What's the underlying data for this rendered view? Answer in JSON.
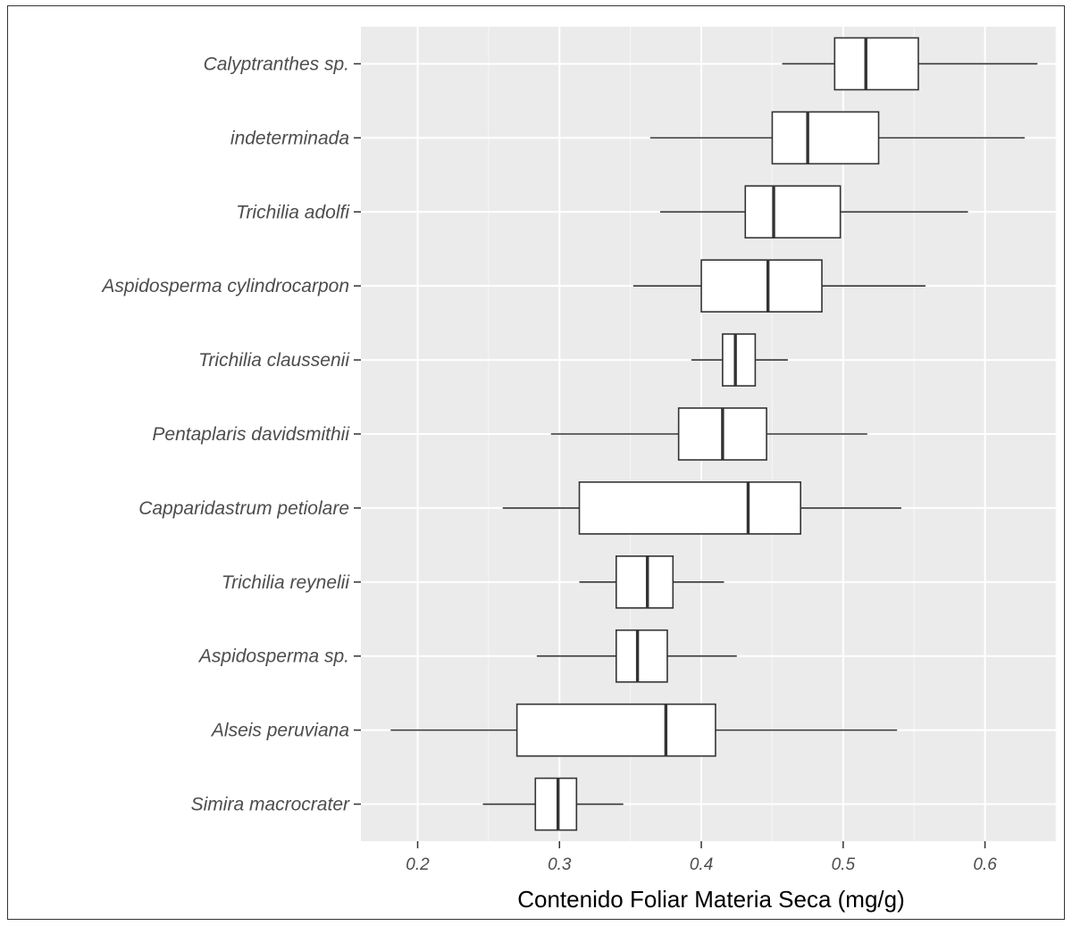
{
  "chart_data": {
    "type": "boxplot",
    "orientation": "horizontal",
    "xlabel": "Contenido Foliar Materia Seca (mg/g)",
    "ylabel": "",
    "xlim": [
      0.16,
      0.65
    ],
    "x_ticks": [
      0.2,
      0.3,
      0.4,
      0.5,
      0.6
    ],
    "x_tick_labels": [
      "0.2",
      "0.3",
      "0.4",
      "0.5",
      "0.6"
    ],
    "grid": true,
    "colors": {
      "panel": "#ebebeb",
      "grid": "#ffffff",
      "box_fill": "#ffffff",
      "box_stroke": "#333333"
    },
    "categories": [
      "Calyptranthes sp.",
      "indeterminada",
      "Trichilia adolfi",
      "Aspidosperma cylindrocarpon",
      "Trichilia claussenii",
      "Pentaplaris davidsmithii",
      "Capparidastrum petiolare",
      "Trichilia reynelii",
      "Aspidosperma sp.",
      "Alseis peruviana",
      "Simira macrocrater"
    ],
    "boxes": [
      {
        "name": "Calyptranthes sp.",
        "whisker_low": 0.457,
        "q1": 0.494,
        "median": 0.516,
        "q3": 0.553,
        "whisker_high": 0.637
      },
      {
        "name": "indeterminada",
        "whisker_low": 0.364,
        "q1": 0.45,
        "median": 0.475,
        "q3": 0.525,
        "whisker_high": 0.628
      },
      {
        "name": "Trichilia adolfi",
        "whisker_low": 0.371,
        "q1": 0.431,
        "median": 0.451,
        "q3": 0.498,
        "whisker_high": 0.588
      },
      {
        "name": "Aspidosperma cylindrocarpon",
        "whisker_low": 0.352,
        "q1": 0.4,
        "median": 0.447,
        "q3": 0.485,
        "whisker_high": 0.558
      },
      {
        "name": "Trichilia claussenii",
        "whisker_low": 0.393,
        "q1": 0.415,
        "median": 0.424,
        "q3": 0.438,
        "whisker_high": 0.461
      },
      {
        "name": "Pentaplaris davidsmithii",
        "whisker_low": 0.294,
        "q1": 0.384,
        "median": 0.415,
        "q3": 0.446,
        "whisker_high": 0.517
      },
      {
        "name": "Capparidastrum petiolare",
        "whisker_low": 0.26,
        "q1": 0.314,
        "median": 0.433,
        "q3": 0.47,
        "whisker_high": 0.541
      },
      {
        "name": "Trichilia reynelii",
        "whisker_low": 0.314,
        "q1": 0.34,
        "median": 0.362,
        "q3": 0.38,
        "whisker_high": 0.416
      },
      {
        "name": "Aspidosperma sp.",
        "whisker_low": 0.284,
        "q1": 0.34,
        "median": 0.355,
        "q3": 0.376,
        "whisker_high": 0.425
      },
      {
        "name": "Alseis peruviana",
        "whisker_low": 0.181,
        "q1": 0.27,
        "median": 0.375,
        "q3": 0.41,
        "whisker_high": 0.538
      },
      {
        "name": "Simira macrocrater",
        "whisker_low": 0.246,
        "q1": 0.283,
        "median": 0.299,
        "q3": 0.312,
        "whisker_high": 0.345
      }
    ]
  }
}
